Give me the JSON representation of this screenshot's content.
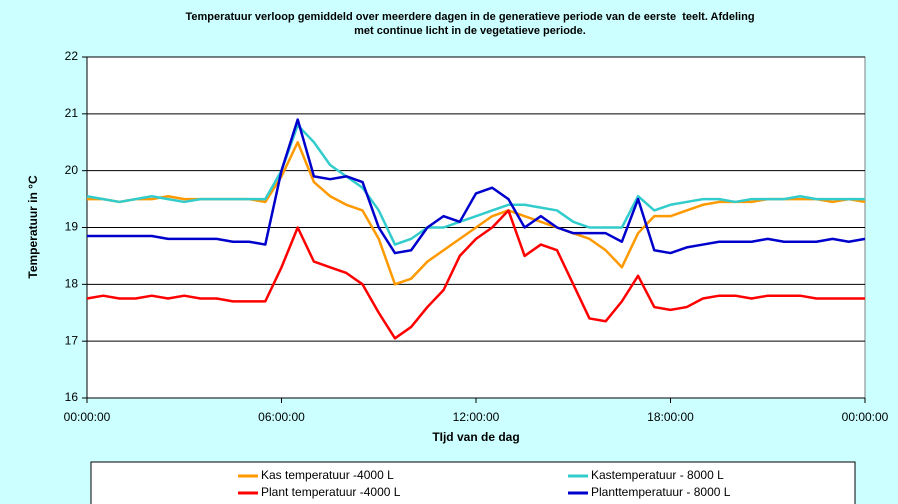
{
  "chart_data": {
    "type": "line",
    "title": [
      "Temperatuur verloop gemiddeld over meerdere dagen in de generatieve periode van de eerste  teelt. Afdeling",
      "met continue licht in de vegetatieve periode."
    ],
    "x_label": "TIjd van de dag",
    "y_label": "Temperatuur in °C",
    "x": [
      0,
      0.5,
      1,
      1.5,
      2,
      2.5,
      3,
      3.5,
      4,
      4.5,
      5,
      5.5,
      6,
      6.5,
      7,
      7.5,
      8,
      8.5,
      9,
      9.5,
      10,
      10.5,
      11,
      11.5,
      12,
      12.5,
      13,
      13.5,
      14,
      14.5,
      15,
      15.5,
      16,
      16.5,
      17,
      17.5,
      18,
      18.5,
      19,
      19.5,
      20,
      20.5,
      21,
      21.5,
      22,
      22.5,
      23,
      23.5,
      24
    ],
    "xlim": [
      0,
      24
    ],
    "xticks": [
      {
        "value": 0,
        "label": "00:00:00"
      },
      {
        "value": 6,
        "label": "06:00:00"
      },
      {
        "value": 12,
        "label": "12:00:00"
      },
      {
        "value": 18,
        "label": "18:00:00"
      },
      {
        "value": 24,
        "label": "00:00:00"
      }
    ],
    "ylim": [
      16,
      22
    ],
    "yticks": [
      16,
      17,
      18,
      19,
      20,
      21,
      22
    ],
    "grid": true,
    "series": [
      {
        "name": "Kas temperatuur -4000 L",
        "color": "#ff9900",
        "values": [
          19.5,
          19.5,
          19.45,
          19.5,
          19.5,
          19.55,
          19.5,
          19.5,
          19.5,
          19.5,
          19.5,
          19.45,
          19.9,
          20.5,
          19.8,
          19.55,
          19.4,
          19.3,
          18.8,
          18.0,
          18.1,
          18.4,
          18.6,
          18.8,
          19.0,
          19.2,
          19.3,
          19.2,
          19.1,
          19.0,
          18.9,
          18.8,
          18.6,
          18.3,
          18.9,
          19.2,
          19.2,
          19.3,
          19.4,
          19.45,
          19.45,
          19.45,
          19.5,
          19.5,
          19.5,
          19.5,
          19.45,
          19.5,
          19.45
        ]
      },
      {
        "name": "Kastemperatuur - 8000 L",
        "color": "#33cccc",
        "values": [
          19.55,
          19.5,
          19.45,
          19.5,
          19.55,
          19.5,
          19.45,
          19.5,
          19.5,
          19.5,
          19.5,
          19.5,
          20.0,
          20.8,
          20.5,
          20.1,
          19.9,
          19.7,
          19.3,
          18.7,
          18.8,
          19.0,
          19.0,
          19.1,
          19.2,
          19.3,
          19.4,
          19.4,
          19.35,
          19.3,
          19.1,
          19.0,
          19.0,
          19.0,
          19.55,
          19.3,
          19.4,
          19.45,
          19.5,
          19.5,
          19.45,
          19.5,
          19.5,
          19.5,
          19.55,
          19.5,
          19.5,
          19.5,
          19.5
        ]
      },
      {
        "name": "Plant temperatuur -4000 L",
        "color": "#ff0000",
        "values": [
          17.75,
          17.8,
          17.75,
          17.75,
          17.8,
          17.75,
          17.8,
          17.75,
          17.75,
          17.7,
          17.7,
          17.7,
          18.3,
          19.0,
          18.4,
          18.3,
          18.2,
          18.0,
          17.5,
          17.05,
          17.25,
          17.6,
          17.9,
          18.5,
          18.8,
          19.0,
          19.3,
          18.5,
          18.7,
          18.6,
          18.0,
          17.4,
          17.35,
          17.7,
          18.15,
          17.6,
          17.55,
          17.6,
          17.75,
          17.8,
          17.8,
          17.75,
          17.8,
          17.8,
          17.8,
          17.75,
          17.75,
          17.75,
          17.75
        ]
      },
      {
        "name": "Planttemperatuur - 8000 L",
        "color": "#0000cc",
        "values": [
          18.85,
          18.85,
          18.85,
          18.85,
          18.85,
          18.8,
          18.8,
          18.8,
          18.8,
          18.75,
          18.75,
          18.7,
          20.0,
          20.9,
          19.9,
          19.85,
          19.9,
          19.8,
          19.0,
          18.55,
          18.6,
          19.0,
          19.2,
          19.1,
          19.6,
          19.7,
          19.5,
          19.0,
          19.2,
          19.0,
          18.9,
          18.9,
          18.9,
          18.75,
          19.5,
          18.6,
          18.55,
          18.65,
          18.7,
          18.75,
          18.75,
          18.75,
          18.8,
          18.75,
          18.75,
          18.75,
          18.8,
          18.75,
          18.8
        ]
      }
    ]
  }
}
